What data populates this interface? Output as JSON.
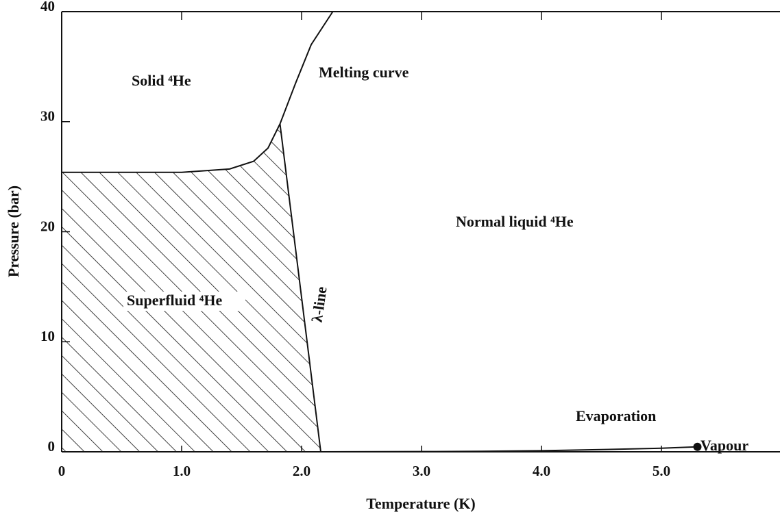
{
  "chart_data": {
    "type": "line",
    "xlabel": "Temperature (K)",
    "ylabel": "Pressure (bar)",
    "xlim": [
      0,
      6
    ],
    "ylim": [
      0,
      40
    ],
    "xticks": [
      0,
      {
        "value": 1,
        "label": "1.0"
      },
      {
        "value": 2,
        "label": "2.0"
      },
      {
        "value": 3,
        "label": "3.0"
      },
      {
        "value": 4,
        "label": "4.0"
      },
      {
        "value": 5,
        "label": "5.0"
      }
    ],
    "yticks": [
      0,
      10,
      20,
      30,
      40
    ],
    "series": [
      {
        "name": "Melting curve",
        "color": "#111111",
        "x": [
          0,
          1.0,
          1.4,
          1.6,
          1.72,
          1.82,
          1.95,
          2.08,
          2.26
        ],
        "values": [
          25.4,
          25.4,
          25.7,
          26.4,
          27.6,
          29.8,
          33.5,
          37,
          40
        ]
      },
      {
        "name": "λ-line",
        "color": "#111111",
        "x": [
          1.82,
          2.16
        ],
        "values": [
          29.8,
          0
        ]
      },
      {
        "name": "Evaporation",
        "color": "#111111",
        "endpoint_marker": true,
        "x": [
          2.16,
          3.0,
          3.5,
          4.0,
          4.5,
          5.0,
          5.3
        ],
        "values": [
          0,
          0.02,
          0.05,
          0.1,
          0.2,
          0.33,
          0.45
        ]
      }
    ],
    "annotations": [
      "Solid ⁴He",
      "Superfluid ⁴He",
      "Normal liquid ⁴He",
      "Vapour"
    ],
    "hatched_region": true
  }
}
